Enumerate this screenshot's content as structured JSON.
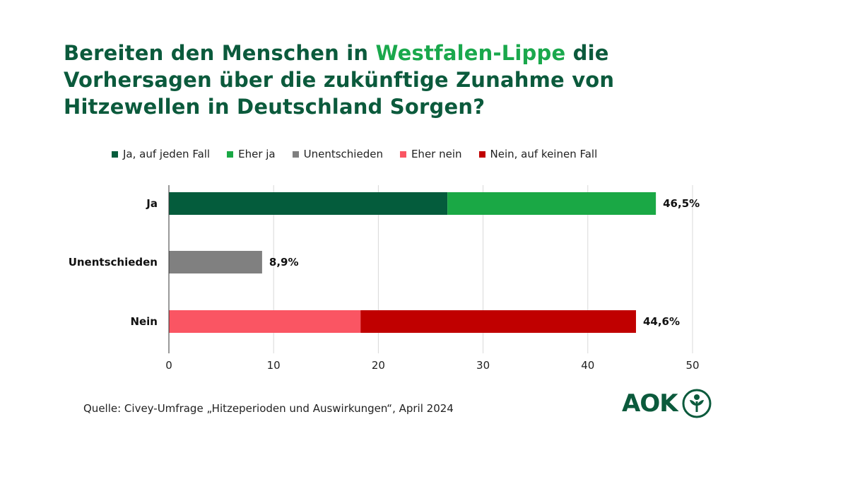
{
  "title": {
    "part1": "Bereiten den Menschen in ",
    "highlight": "Westfalen-Lippe",
    "part2": " die Vorhersagen über die zukünftige Zunahme von Hitzewellen in Deutschland Sorgen?"
  },
  "colors": {
    "title": "#0b5a3c",
    "title_highlight": "#1aa84c",
    "grid": "#d9d9d9",
    "axis": "#333333"
  },
  "chart_data": {
    "type": "bar",
    "orientation": "horizontal",
    "stacked": true,
    "categories": [
      "Ja",
      "Unentschieden",
      "Nein"
    ],
    "series": [
      {
        "name": "Ja, auf jeden Fall",
        "color": "#045c3c",
        "values": [
          26.6,
          0,
          0
        ]
      },
      {
        "name": "Eher ja",
        "color": "#1aa845",
        "values": [
          19.9,
          0,
          0
        ]
      },
      {
        "name": "Unentschieden",
        "color": "#808080",
        "values": [
          0,
          8.9,
          0
        ]
      },
      {
        "name": "Eher nein",
        "color": "#fa5563",
        "values": [
          0,
          0,
          18.3
        ]
      },
      {
        "name": "Nein, auf keinen Fall",
        "color": "#c00000",
        "values": [
          0,
          0,
          26.3
        ]
      }
    ],
    "totals": [
      "46,5%",
      "8,9%",
      "44,6%"
    ],
    "xlim": [
      0,
      50
    ],
    "xticks": [
      0,
      10,
      20,
      30,
      40,
      50
    ],
    "grid": true,
    "legend_position": "top"
  },
  "source": "Quelle: Civey-Umfrage „Hitzeperioden und Auswirkungen“, April 2024",
  "logo": {
    "text": "AOK",
    "icon": "aok-tree-icon"
  }
}
